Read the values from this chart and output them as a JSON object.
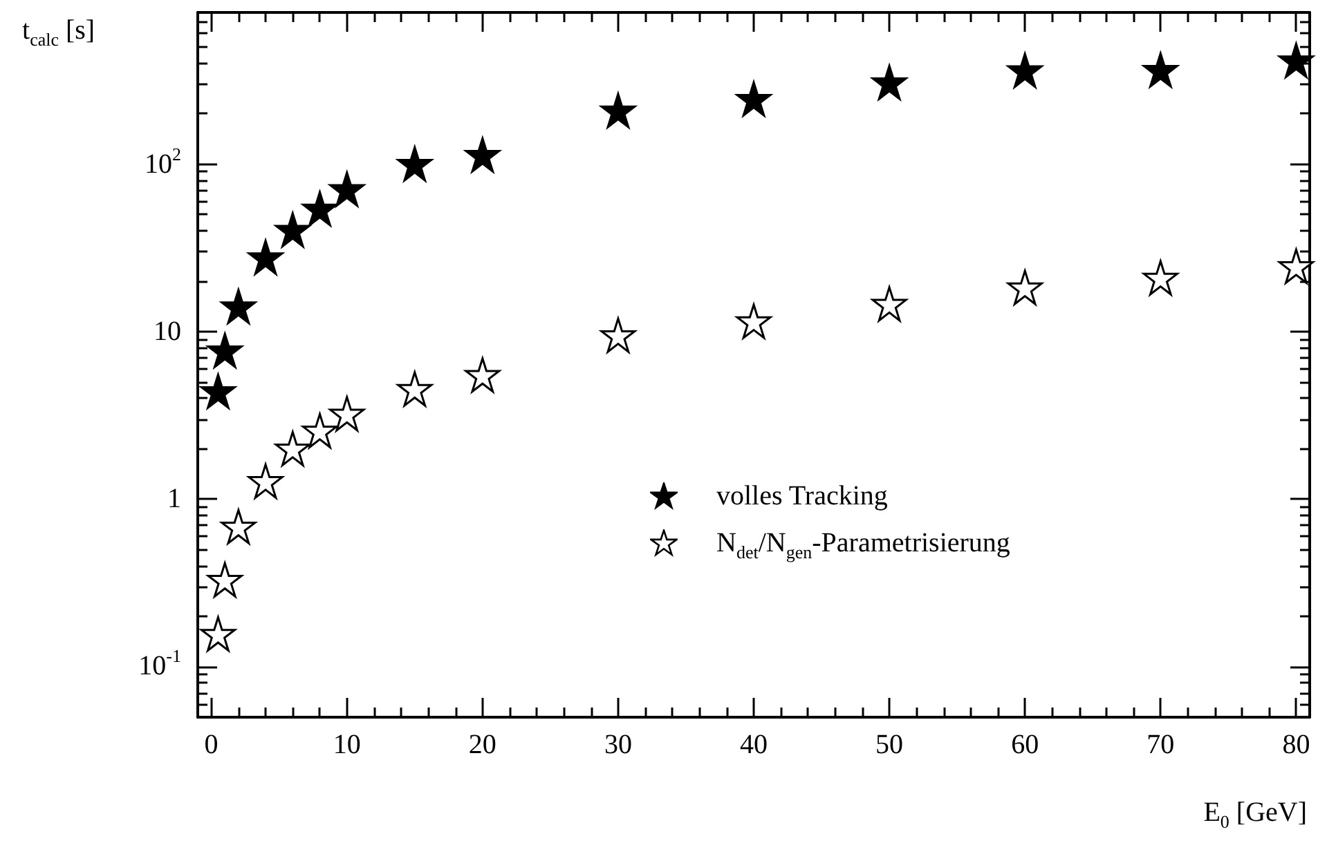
{
  "chart_data": {
    "type": "scatter",
    "xlabel": "E$_{0}$ [GeV]",
    "ylabel": "t$_{calc}$ [s]",
    "x": [
      0.5,
      1,
      2,
      4,
      6,
      8,
      10,
      15,
      20,
      30,
      40,
      50,
      60,
      70,
      80
    ],
    "series": [
      {
        "name": "volles Tracking",
        "color": "#000000",
        "values": [
          4.4,
          7.7,
          14.1,
          27.7,
          40.4,
          54,
          70.6,
          100,
          113,
          208,
          244,
          306,
          361,
          363,
          414
        ]
      },
      {
        "name": "N$_{det}$/N$_{gen}$-Parametrisierung",
        "color": "#ffffff",
        "values": [
          0.157,
          0.33,
          0.685,
          1.28,
          2.0,
          2.56,
          3.23,
          4.54,
          5.5,
          9.5,
          11.5,
          14.6,
          18.3,
          20.9,
          24.5
        ]
      }
    ],
    "marker": "star",
    "log": "y",
    "grid": false,
    "legend": "right",
    "xlim": [
      -1,
      81
    ],
    "ylim": [
      0.05,
      800
    ],
    "xticks": [
      0,
      {
        "value": 2,
        "label": null
      },
      {
        "value": 4,
        "label": null
      },
      {
        "value": 6,
        "label": null
      },
      {
        "value": 8,
        "label": null
      },
      10,
      {
        "value": 12,
        "label": null
      },
      {
        "value": 14,
        "label": null
      },
      {
        "value": 16,
        "label": null
      },
      {
        "value": 18,
        "label": null
      },
      20,
      {
        "value": 22,
        "label": null
      },
      {
        "value": 24,
        "label": null
      },
      {
        "value": 26,
        "label": null
      },
      {
        "value": 28,
        "label": null
      },
      30,
      {
        "value": 32,
        "label": null
      },
      {
        "value": 34,
        "label": null
      },
      {
        "value": 36,
        "label": null
      },
      {
        "value": 38,
        "label": null
      },
      40,
      {
        "value": 42,
        "label": null
      },
      {
        "value": 44,
        "label": null
      },
      {
        "value": 46,
        "label": null
      },
      {
        "value": 48,
        "label": null
      },
      50,
      {
        "value": 52,
        "label": null
      },
      {
        "value": 54,
        "label": null
      },
      {
        "value": 56,
        "label": null
      },
      {
        "value": 58,
        "label": null
      },
      60,
      {
        "value": 62,
        "label": null
      },
      {
        "value": 64,
        "label": null
      },
      {
        "value": 66,
        "label": null
      },
      {
        "value": 68,
        "label": null
      },
      70,
      {
        "value": 72,
        "label": null
      },
      {
        "value": 74,
        "label": null
      },
      {
        "value": 76,
        "label": null
      },
      {
        "value": 78,
        "label": null
      },
      80
    ],
    "yticks": [
      {
        "value": 0.06,
        "label": null
      },
      {
        "value": 0.07,
        "label": null
      },
      {
        "value": 0.08,
        "label": null
      },
      {
        "value": 0.09,
        "label": null
      },
      {
        "value": 0.1,
        "label": "10$^{-1}$"
      },
      {
        "value": 0.2,
        "label": null
      },
      {
        "value": 0.3,
        "label": null
      },
      {
        "value": 0.4,
        "label": null
      },
      {
        "value": 0.5,
        "label": null
      },
      {
        "value": 0.6,
        "label": null
      },
      {
        "value": 0.7,
        "label": null
      },
      {
        "value": 0.8,
        "label": null
      },
      {
        "value": 0.9,
        "label": null
      },
      1,
      {
        "value": 2,
        "label": null
      },
      {
        "value": 3,
        "label": null
      },
      {
        "value": 4,
        "label": null
      },
      {
        "value": 5,
        "label": null
      },
      {
        "value": 6,
        "label": null
      },
      {
        "value": 7,
        "label": null
      },
      {
        "value": 8,
        "label": null
      },
      {
        "value": 9,
        "label": null
      },
      10,
      {
        "value": 20,
        "label": null
      },
      {
        "value": 30,
        "label": null
      },
      {
        "value": 40,
        "label": null
      },
      {
        "value": 50,
        "label": null
      },
      {
        "value": 60,
        "label": null
      },
      {
        "value": 70,
        "label": null
      },
      {
        "value": 80,
        "label": null
      },
      {
        "value": 90,
        "label": null
      },
      {
        "value": 100,
        "label": "10$^{2}$"
      },
      {
        "value": 200,
        "label": null
      },
      {
        "value": 300,
        "label": null
      },
      {
        "value": 400,
        "label": null
      },
      {
        "value": 500,
        "label": null
      },
      {
        "value": 600,
        "label": null
      },
      {
        "value": 700,
        "label": null
      },
      {
        "value": 800,
        "label": null
      }
    ]
  }
}
